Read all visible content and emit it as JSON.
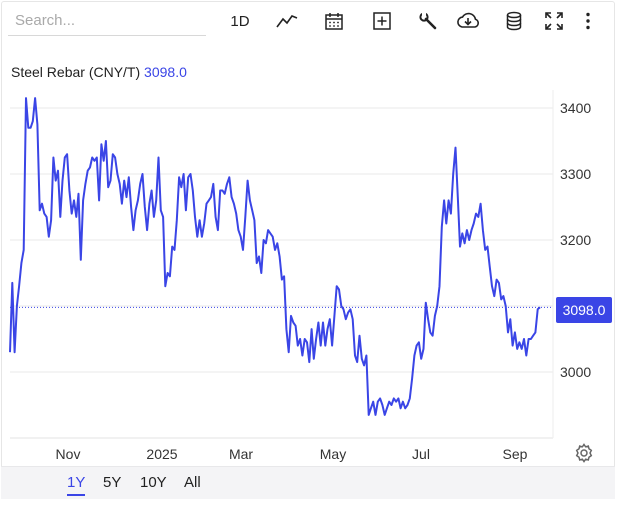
{
  "toolbar": {
    "search_placeholder": "Search...",
    "interval_label": "1D",
    "icons": [
      "line-chart-icon",
      "calendar-icon",
      "plus-box-icon",
      "wrench-icon",
      "cloud-download-icon",
      "database-icon",
      "fullscreen-icon",
      "more-vertical-icon"
    ]
  },
  "title": {
    "name": "Steel Rebar (CNY/T)",
    "last_value": "3098.0"
  },
  "price_badge": "3098.0",
  "ranges": [
    {
      "label": "1Y",
      "active": true
    },
    {
      "label": "5Y",
      "active": false
    },
    {
      "label": "10Y",
      "active": false
    },
    {
      "label": "All",
      "active": false
    }
  ],
  "colors": {
    "line": "#3a45e6",
    "grid": "#e9e9e9",
    "badge": "#3a45e6"
  },
  "chart_data": {
    "type": "line",
    "title": "Steel Rebar (CNY/T)",
    "xlabel": "",
    "ylabel": "",
    "x_ticks": [
      "Nov",
      "2025",
      "Mar",
      "May",
      "Jul",
      "Sep"
    ],
    "y_ticks": [
      3000,
      3100,
      3200,
      3300,
      3400
    ],
    "y_tick_labels": [
      "3000",
      "3100",
      "3200",
      "3300",
      "3400"
    ],
    "ylim": [
      2900,
      3450
    ],
    "y_axis_position": "right",
    "grid": true,
    "last_value": 3098.0,
    "series": [
      {
        "values": [
          3030,
          3135,
          3030,
          3100,
          3130,
          3165,
          3185,
          3415,
          3370,
          3370,
          3380,
          3415,
          3375,
          3245,
          3255,
          3240,
          3235,
          3205,
          3230,
          3325,
          3290,
          3305,
          3235,
          3290,
          3325,
          3330,
          3275,
          3240,
          3260,
          3235,
          3270,
          3170,
          3260,
          3285,
          3305,
          3310,
          3325,
          3320,
          3325,
          3260,
          3345,
          3320,
          3350,
          3280,
          3290,
          3330,
          3325,
          3300,
          3285,
          3255,
          3290,
          3265,
          3295,
          3250,
          3215,
          3245,
          3260,
          3285,
          3300,
          3250,
          3215,
          3255,
          3275,
          3235,
          3260,
          3325,
          3245,
          3235,
          3130,
          3150,
          3145,
          3190,
          3185,
          3230,
          3295,
          3280,
          3300,
          3245,
          3295,
          3300,
          3275,
          3235,
          3205,
          3230,
          3205,
          3225,
          3255,
          3260,
          3265,
          3285,
          3235,
          3215,
          3275,
          3275,
          3270,
          3285,
          3295,
          3265,
          3255,
          3240,
          3215,
          3205,
          3185,
          3235,
          3290,
          3260,
          3245,
          3230,
          3165,
          3175,
          3150,
          3200,
          3195,
          3215,
          3210,
          3205,
          3185,
          3195,
          3175,
          3140,
          3145,
          3065,
          3030,
          3085,
          3075,
          3070,
          3040,
          3050,
          3025,
          3050,
          3045,
          3015,
          3065,
          3020,
          3050,
          3075,
          3040,
          3075,
          3040,
          3065,
          3080,
          3040,
          3085,
          3130,
          3125,
          3100,
          3095,
          3080,
          3090,
          3095,
          3080,
          3025,
          3015,
          3055,
          3020,
          3010,
          3025,
          2935,
          2945,
          2955,
          2935,
          2955,
          2960,
          2950,
          2935,
          2945,
          2955,
          2950,
          2960,
          2955,
          2960,
          2945,
          2955,
          2945,
          2950,
          2960,
          2990,
          3025,
          3040,
          3045,
          3020,
          3035,
          3105,
          3080,
          3060,
          3055,
          3085,
          3100,
          3130,
          3220,
          3260,
          3225,
          3260,
          3240,
          3300,
          3340,
          3265,
          3190,
          3210,
          3195,
          3215,
          3200,
          3215,
          3225,
          3240,
          3235,
          3255,
          3215,
          3185,
          3190,
          3160,
          3130,
          3115,
          3140,
          3135,
          3110,
          3115,
          3100,
          3060,
          3080,
          3040,
          3060,
          3035,
          3045,
          3035,
          3050,
          3025,
          3050,
          3050,
          3055,
          3060,
          3095,
          3098
        ]
      }
    ]
  }
}
